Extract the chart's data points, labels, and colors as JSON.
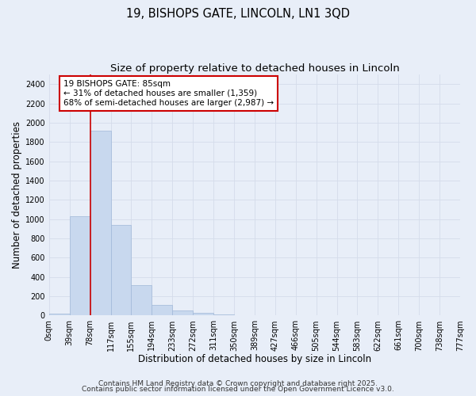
{
  "title1": "19, BISHOPS GATE, LINCOLN, LN1 3QD",
  "title2": "Size of property relative to detached houses in Lincoln",
  "xlabel": "Distribution of detached houses by size in Lincoln",
  "ylabel": "Number of detached properties",
  "bin_labels": [
    "0sqm",
    "39sqm",
    "78sqm",
    "117sqm",
    "155sqm",
    "194sqm",
    "233sqm",
    "272sqm",
    "311sqm",
    "350sqm",
    "389sqm",
    "427sqm",
    "466sqm",
    "505sqm",
    "544sqm",
    "583sqm",
    "622sqm",
    "661sqm",
    "700sqm",
    "738sqm",
    "777sqm"
  ],
  "bar_values": [
    20,
    1030,
    1920,
    940,
    320,
    110,
    55,
    30,
    10,
    2,
    0,
    0,
    0,
    0,
    0,
    0,
    0,
    0,
    0,
    0
  ],
  "bar_color": "#c8d8ee",
  "bar_edge_color": "#a0b8d8",
  "grid_color": "#d4dcea",
  "background_color": "#e8eef8",
  "vline_x_index": 2,
  "vline_color": "#cc0000",
  "annotation_text": "19 BISHOPS GATE: 85sqm\n← 31% of detached houses are smaller (1,359)\n68% of semi-detached houses are larger (2,987) →",
  "annotation_box_color": "#ffffff",
  "annotation_box_edge": "#cc0000",
  "ylim": [
    0,
    2500
  ],
  "yticks": [
    0,
    200,
    400,
    600,
    800,
    1000,
    1200,
    1400,
    1600,
    1800,
    2000,
    2200,
    2400
  ],
  "footer1": "Contains HM Land Registry data © Crown copyright and database right 2025.",
  "footer2": "Contains public sector information licensed under the Open Government Licence v3.0.",
  "title_fontsize": 10.5,
  "subtitle_fontsize": 9.5,
  "axis_fontsize": 8.5,
  "tick_fontsize": 7,
  "footer_fontsize": 6.5,
  "annot_fontsize": 7.5
}
